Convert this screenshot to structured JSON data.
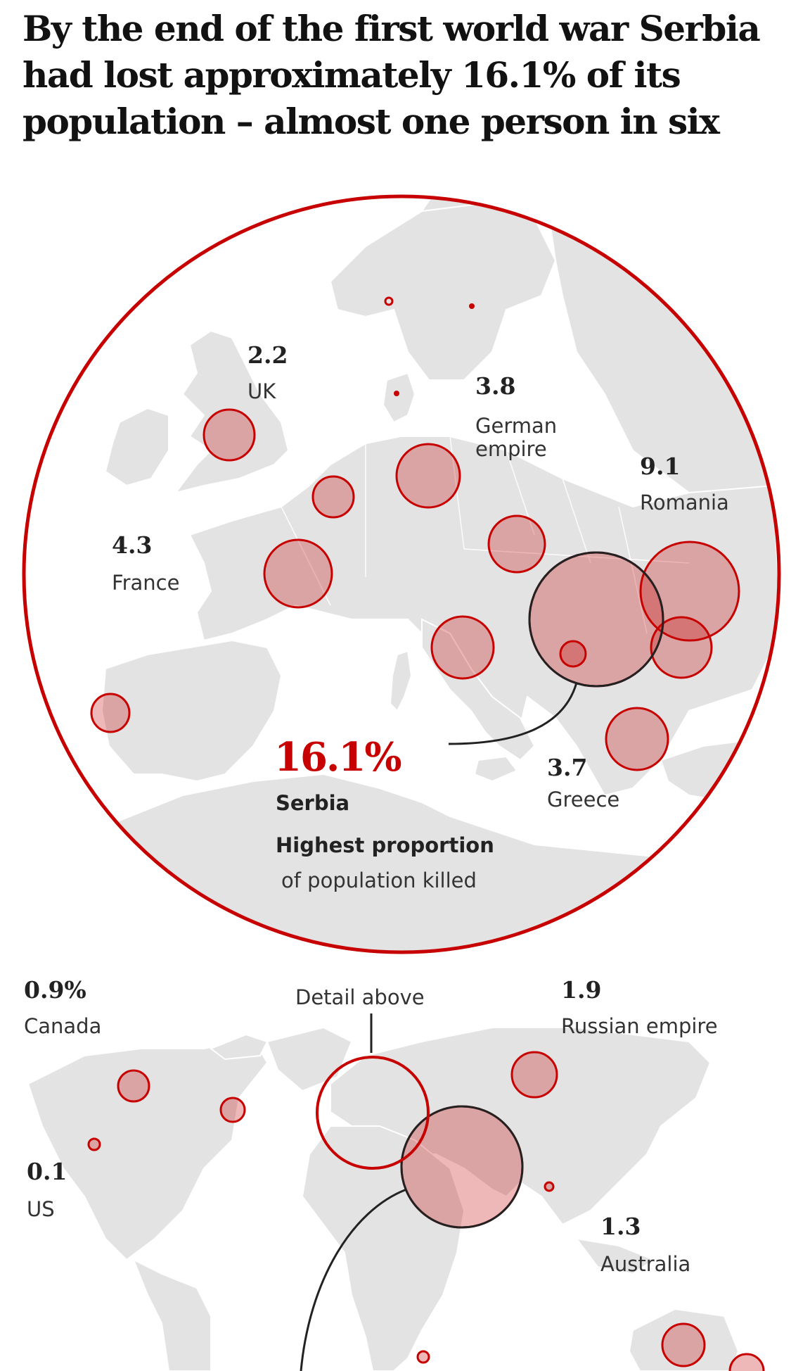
{
  "title": "By the end of the first world war Serbia had lost approximately 16.1% of its population – almost one person in six",
  "colors": {
    "accent": "#c70000",
    "bubble_fill": "#e8a5a5",
    "land": "#e3e3e3",
    "highlight_ring": "#222222"
  },
  "europe_labels": [
    {
      "value": "2.2",
      "name": "UK"
    },
    {
      "value": "3.8",
      "name": "German empire"
    },
    {
      "value": "9.1",
      "name": "Romania"
    },
    {
      "value": "4.3",
      "name": "France"
    },
    {
      "value": "3.7",
      "name": "Greece"
    }
  ],
  "serbia": {
    "value": "16.1%",
    "name": "Serbia",
    "note_heading": "Highest proportion",
    "note_sub": "of population killed"
  },
  "world_labels": [
    {
      "value": "0.9%",
      "name": "Canada"
    },
    {
      "value": "0.1",
      "name": "US"
    },
    {
      "value": "1.9",
      "name": "Russian empire"
    },
    {
      "value": "1.3",
      "name": "Australia"
    }
  ],
  "detail_label": "Detail above"
}
